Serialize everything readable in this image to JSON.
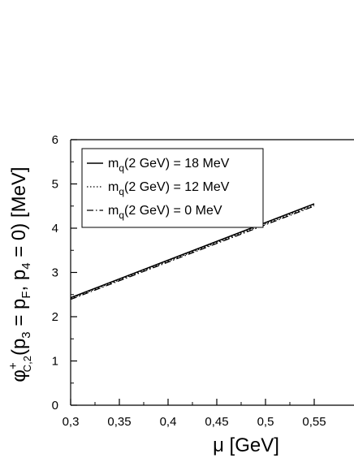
{
  "chart_data": {
    "type": "line",
    "xlabel": {
      "main": "μ [GeV]"
    },
    "ylabel": {
      "symbol": "φ",
      "sup": "+",
      "sub": "C,2",
      "args_a": "(p",
      "args_sub3": "3",
      "args_b": " = p",
      "args_subF": "F",
      "args_c": ", p",
      "args_sub4": "4",
      "args_d": " = 0) [MeV]"
    },
    "xlim": [
      0.3,
      0.6
    ],
    "ylim": [
      0,
      6
    ],
    "x_ticks": [
      {
        "value": 0.3,
        "label": "0,3"
      },
      {
        "value": 0.35,
        "label": "0,35"
      },
      {
        "value": 0.4,
        "label": "0,4"
      },
      {
        "value": 0.45,
        "label": "0,45"
      },
      {
        "value": 0.5,
        "label": "0,5"
      },
      {
        "value": 0.55,
        "label": "0,55"
      }
    ],
    "y_ticks": [
      {
        "value": 0,
        "label": "0"
      },
      {
        "value": 1,
        "label": "1"
      },
      {
        "value": 2,
        "label": "2"
      },
      {
        "value": 3,
        "label": "3"
      },
      {
        "value": 4,
        "label": "4"
      },
      {
        "value": 5,
        "label": "5"
      },
      {
        "value": 6,
        "label": "6"
      }
    ],
    "grid": false,
    "legend_position": "top-left",
    "series": [
      {
        "name": "m_q(2 GeV) = 18 MeV",
        "name_a": "m",
        "name_sub": "q",
        "name_b": "(2 GeV) = 18 MeV",
        "style": "solid",
        "x": [
          0.3,
          0.55
        ],
        "y": [
          2.43,
          4.55
        ]
      },
      {
        "name": "m_q(2 GeV) = 12 MeV",
        "name_a": "m",
        "name_sub": "q",
        "name_b": "(2 GeV) = 12 MeV",
        "style": "dotted",
        "x": [
          0.3,
          0.55
        ],
        "y": [
          2.41,
          4.52
        ]
      },
      {
        "name": "m_q(2 GeV) = 0 MeV",
        "name_a": "m",
        "name_sub": "q",
        "name_b": "(2 GeV) = 0 MeV",
        "style": "dashdot",
        "x": [
          0.3,
          0.55
        ],
        "y": [
          2.39,
          4.5
        ]
      }
    ]
  }
}
